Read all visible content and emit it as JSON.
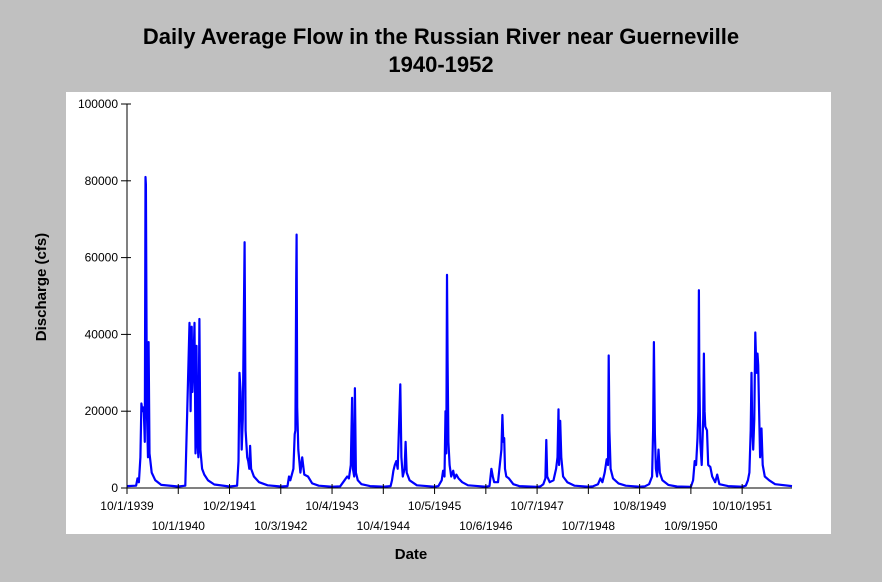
{
  "colors": {
    "background": "#c0c0c0",
    "plot_background": "#ffffff",
    "series": "#0000ff",
    "axis": "#000000"
  },
  "chart_data": {
    "type": "line",
    "title": "Daily Average Flow in the Russian River near Guerneville",
    "subtitle": "1940-1952",
    "xlabel": "Date",
    "ylabel": "Discharge (cfs)",
    "grid": false,
    "xlim": [
      "1939-10-01",
      "1952-09-30"
    ],
    "ylim": [
      0,
      100000
    ],
    "yticks": [
      0,
      20000,
      40000,
      60000,
      80000,
      100000
    ],
    "xticks": [
      {
        "date": "1939-10-01",
        "label": "10/1/1939"
      },
      {
        "date": "1940-10-01",
        "label": "10/1/1940"
      },
      {
        "date": "1941-10-02",
        "label": "10/2/1941"
      },
      {
        "date": "1942-10-03",
        "label": "10/3/1942"
      },
      {
        "date": "1943-10-04",
        "label": "10/4/1943"
      },
      {
        "date": "1944-10-04",
        "label": "10/4/1944"
      },
      {
        "date": "1945-10-05",
        "label": "10/5/1945"
      },
      {
        "date": "1946-10-06",
        "label": "10/6/1946"
      },
      {
        "date": "1947-10-07",
        "label": "10/7/1947"
      },
      {
        "date": "1948-10-07",
        "label": "10/7/1948"
      },
      {
        "date": "1949-10-08",
        "label": "10/8/1949"
      },
      {
        "date": "1950-10-09",
        "label": "10/9/1950"
      },
      {
        "date": "1951-10-10",
        "label": "10/10/1951"
      }
    ],
    "series": [
      {
        "points": [
          [
            "1939-10-01",
            500
          ],
          [
            "1939-12-05",
            600
          ],
          [
            "1939-12-15",
            2500
          ],
          [
            "1939-12-25",
            1500
          ],
          [
            "1940-01-05",
            8000
          ],
          [
            "1940-01-12",
            22000
          ],
          [
            "1940-01-20",
            20000
          ],
          [
            "1940-01-28",
            21000
          ],
          [
            "1940-02-05",
            12000
          ],
          [
            "1940-02-10",
            81000
          ],
          [
            "1940-02-13",
            79000
          ],
          [
            "1940-02-20",
            20000
          ],
          [
            "1940-02-28",
            8000
          ],
          [
            "1940-03-03",
            38000
          ],
          [
            "1940-03-10",
            9000
          ],
          [
            "1940-03-25",
            4000
          ],
          [
            "1940-04-20",
            2000
          ],
          [
            "1940-06-01",
            800
          ],
          [
            "1940-09-30",
            400
          ],
          [
            "1940-11-20",
            600
          ],
          [
            "1940-12-20",
            43000
          ],
          [
            "1940-12-28",
            20000
          ],
          [
            "1941-01-05",
            42000
          ],
          [
            "1941-01-10",
            25000
          ],
          [
            "1941-01-18",
            33000
          ],
          [
            "1941-01-25",
            43000
          ],
          [
            "1941-02-01",
            9000
          ],
          [
            "1941-02-08",
            37000
          ],
          [
            "1941-02-15",
            12000
          ],
          [
            "1941-02-22",
            8000
          ],
          [
            "1941-03-01",
            44000
          ],
          [
            "1941-03-08",
            10000
          ],
          [
            "1941-03-20",
            5000
          ],
          [
            "1941-04-05",
            3500
          ],
          [
            "1941-05-01",
            2000
          ],
          [
            "1941-06-15",
            900
          ],
          [
            "1941-10-01",
            400
          ],
          [
            "1941-11-25",
            600
          ],
          [
            "1941-12-05",
            7000
          ],
          [
            "1941-12-12",
            30000
          ],
          [
            "1941-12-20",
            25000
          ],
          [
            "1941-12-28",
            10000
          ],
          [
            "1942-01-05",
            18000
          ],
          [
            "1942-01-10",
            36000
          ],
          [
            "1942-01-18",
            64000
          ],
          [
            "1942-01-25",
            15000
          ],
          [
            "1942-02-05",
            8000
          ],
          [
            "1942-02-12",
            7000
          ],
          [
            "1942-02-20",
            5000
          ],
          [
            "1942-02-26",
            11000
          ],
          [
            "1942-03-05",
            5000
          ],
          [
            "1942-03-25",
            3000
          ],
          [
            "1942-05-01",
            1500
          ],
          [
            "1942-07-01",
            700
          ],
          [
            "1942-10-03",
            400
          ],
          [
            "1942-11-20",
            500
          ],
          [
            "1942-12-01",
            3000
          ],
          [
            "1942-12-10",
            2000
          ],
          [
            "1943-01-01",
            5000
          ],
          [
            "1943-01-10",
            14000
          ],
          [
            "1943-01-15",
            15000
          ],
          [
            "1943-01-21",
            54000
          ],
          [
            "1943-01-24",
            66000
          ],
          [
            "1943-01-28",
            21000
          ],
          [
            "1943-02-05",
            10000
          ],
          [
            "1943-02-20",
            4000
          ],
          [
            "1943-03-05",
            8000
          ],
          [
            "1943-03-20",
            3500
          ],
          [
            "1943-04-15",
            3000
          ],
          [
            "1943-05-15",
            1200
          ],
          [
            "1943-07-01",
            600
          ],
          [
            "1943-10-04",
            350
          ],
          [
            "1943-12-01",
            450
          ],
          [
            "1944-01-01",
            2000
          ],
          [
            "1944-01-20",
            3000
          ],
          [
            "1944-02-01",
            2500
          ],
          [
            "1944-02-15",
            6000
          ],
          [
            "1944-02-24",
            23500
          ],
          [
            "1944-03-01",
            5000
          ],
          [
            "1944-03-10",
            3000
          ],
          [
            "1944-03-15",
            26000
          ],
          [
            "1944-03-22",
            4000
          ],
          [
            "1944-04-05",
            2000
          ],
          [
            "1944-05-01",
            1000
          ],
          [
            "1944-07-01",
            500
          ],
          [
            "1944-10-04",
            350
          ],
          [
            "1944-11-25",
            500
          ],
          [
            "1944-12-05",
            2000
          ],
          [
            "1944-12-15",
            4500
          ],
          [
            "1944-12-25",
            6000
          ],
          [
            "1945-01-05",
            7000
          ],
          [
            "1945-01-15",
            5000
          ],
          [
            "1945-02-02",
            27000
          ],
          [
            "1945-02-10",
            8000
          ],
          [
            "1945-02-20",
            3000
          ],
          [
            "1945-03-05",
            5000
          ],
          [
            "1945-03-12",
            12000
          ],
          [
            "1945-03-20",
            4000
          ],
          [
            "1945-04-10",
            2000
          ],
          [
            "1945-06-01",
            700
          ],
          [
            "1945-10-05",
            350
          ],
          [
            "1945-11-01",
            500
          ],
          [
            "1945-11-25",
            2000
          ],
          [
            "1945-12-05",
            4500
          ],
          [
            "1945-12-15",
            3000
          ],
          [
            "1945-12-22",
            20000
          ],
          [
            "1945-12-28",
            9000
          ],
          [
            "1946-01-02",
            55500
          ],
          [
            "1946-01-06",
            33000
          ],
          [
            "1946-01-12",
            12000
          ],
          [
            "1946-01-20",
            6000
          ],
          [
            "1946-02-01",
            3000
          ],
          [
            "1946-02-15",
            4500
          ],
          [
            "1946-02-25",
            2500
          ],
          [
            "1946-03-10",
            3500
          ],
          [
            "1946-03-25",
            2500
          ],
          [
            "1946-04-20",
            1500
          ],
          [
            "1946-06-01",
            700
          ],
          [
            "1946-10-06",
            350
          ],
          [
            "1946-11-01",
            500
          ],
          [
            "1946-11-15",
            5000
          ],
          [
            "1946-11-25",
            3000
          ],
          [
            "1946-12-05",
            1500
          ],
          [
            "1947-01-01",
            1500
          ],
          [
            "1947-01-25",
            10000
          ],
          [
            "1947-02-01",
            19000
          ],
          [
            "1947-02-08",
            12000
          ],
          [
            "1947-02-14",
            13000
          ],
          [
            "1947-02-20",
            5000
          ],
          [
            "1947-03-01",
            3000
          ],
          [
            "1947-03-20",
            2500
          ],
          [
            "1947-04-20",
            1000
          ],
          [
            "1947-06-01",
            500
          ],
          [
            "1947-10-07",
            300
          ],
          [
            "1947-11-01",
            450
          ],
          [
            "1947-11-20",
            1000
          ],
          [
            "1947-12-05",
            2500
          ],
          [
            "1947-12-12",
            12500
          ],
          [
            "1947-12-18",
            3000
          ],
          [
            "1948-01-05",
            1500
          ],
          [
            "1948-02-01",
            2000
          ],
          [
            "1948-02-20",
            5000
          ],
          [
            "1948-03-01",
            8000
          ],
          [
            "1948-03-08",
            20500
          ],
          [
            "1948-03-12",
            6000
          ],
          [
            "1948-03-20",
            17500
          ],
          [
            "1948-03-28",
            8000
          ],
          [
            "1948-04-10",
            3000
          ],
          [
            "1948-05-10",
            1500
          ],
          [
            "1948-07-01",
            600
          ],
          [
            "1948-10-07",
            350
          ],
          [
            "1948-11-10",
            450
          ],
          [
            "1948-12-15",
            1000
          ],
          [
            "1949-01-01",
            2500
          ],
          [
            "1949-01-15",
            1500
          ],
          [
            "1949-02-01",
            4000
          ],
          [
            "1949-02-15",
            7500
          ],
          [
            "1949-02-24",
            6000
          ],
          [
            "1949-03-01",
            34500
          ],
          [
            "1949-03-06",
            15000
          ],
          [
            "1949-03-15",
            5000
          ],
          [
            "1949-04-01",
            2500
          ],
          [
            "1949-05-10",
            1200
          ],
          [
            "1949-07-01",
            600
          ],
          [
            "1949-10-08",
            350
          ],
          [
            "1949-11-15",
            450
          ],
          [
            "1949-12-15",
            1000
          ],
          [
            "1950-01-05",
            3000
          ],
          [
            "1950-01-12",
            15000
          ],
          [
            "1950-01-18",
            38000
          ],
          [
            "1950-01-25",
            14000
          ],
          [
            "1950-02-01",
            5000
          ],
          [
            "1950-02-10",
            3000
          ],
          [
            "1950-02-20",
            10000
          ],
          [
            "1950-03-01",
            4000
          ],
          [
            "1950-03-20",
            2000
          ],
          [
            "1950-05-01",
            800
          ],
          [
            "1950-07-01",
            400
          ],
          [
            "1950-10-09",
            300
          ],
          [
            "1950-10-25",
            2000
          ],
          [
            "1950-11-05",
            7000
          ],
          [
            "1950-11-15",
            6000
          ],
          [
            "1950-11-25",
            13000
          ],
          [
            "1950-12-01",
            20000
          ],
          [
            "1950-12-05",
            51500
          ],
          [
            "1950-12-08",
            30000
          ],
          [
            "1950-12-15",
            12000
          ],
          [
            "1950-12-25",
            6000
          ],
          [
            "1951-01-05",
            18000
          ],
          [
            "1951-01-10",
            35000
          ],
          [
            "1951-01-15",
            20000
          ],
          [
            "1951-01-20",
            16000
          ],
          [
            "1951-02-01",
            15000
          ],
          [
            "1951-02-10",
            6000
          ],
          [
            "1951-02-25",
            5500
          ],
          [
            "1951-03-10",
            3000
          ],
          [
            "1951-04-01",
            1500
          ],
          [
            "1951-04-15",
            3500
          ],
          [
            "1951-05-01",
            1000
          ],
          [
            "1951-07-01",
            500
          ],
          [
            "1951-10-10",
            350
          ],
          [
            "1951-11-05",
            600
          ],
          [
            "1951-11-20",
            2000
          ],
          [
            "1951-12-01",
            4000
          ],
          [
            "1951-12-10",
            15000
          ],
          [
            "1951-12-16",
            30000
          ],
          [
            "1951-12-20",
            18000
          ],
          [
            "1951-12-28",
            10000
          ],
          [
            "1952-01-05",
            18000
          ],
          [
            "1952-01-12",
            40500
          ],
          [
            "1952-01-16",
            35000
          ],
          [
            "1952-01-22",
            30000
          ],
          [
            "1952-01-28",
            35000
          ],
          [
            "1952-02-02",
            32000
          ],
          [
            "1952-02-08",
            20000
          ],
          [
            "1952-02-15",
            8000
          ],
          [
            "1952-02-25",
            15500
          ],
          [
            "1952-03-05",
            6000
          ],
          [
            "1952-03-20",
            3000
          ],
          [
            "1952-04-20",
            2000
          ],
          [
            "1952-06-01",
            1000
          ],
          [
            "1952-09-30",
            500
          ]
        ]
      }
    ]
  }
}
